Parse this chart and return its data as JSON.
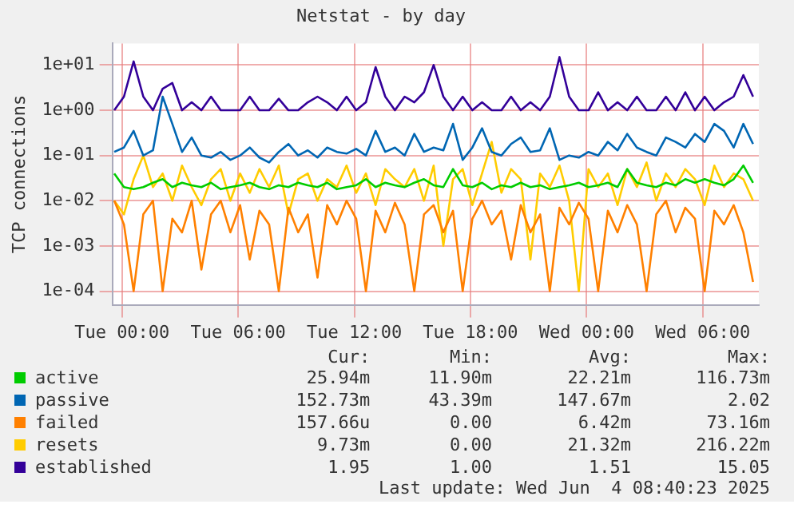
{
  "chart_data": {
    "type": "line",
    "title": "Netstat - by day",
    "ylabel": "TCP connections",
    "log": "y",
    "grid": true,
    "legend": "bottom",
    "marker": "none",
    "xlim": [
      "2025-06-02T23:30",
      "2025-06-04T08:54"
    ],
    "xticks": [
      {
        "value": "2025-06-03T00:00",
        "label": "Tue 00:00"
      },
      {
        "value": "2025-06-03T06:00",
        "label": "Tue 06:00"
      },
      {
        "value": "2025-06-03T12:00",
        "label": "Tue 12:00"
      },
      {
        "value": "2025-06-03T18:00",
        "label": "Tue 18:00"
      },
      {
        "value": "2025-06-04T00:00",
        "label": "Wed 00:00"
      },
      {
        "value": "2025-06-04T06:00",
        "label": "Wed 06:00"
      }
    ],
    "ylim": [
      5e-05,
      30
    ],
    "yticks": [
      {
        "value": 0.0001,
        "label": "1e-04"
      },
      {
        "value": 0.001,
        "label": "1e-03"
      },
      {
        "value": 0.01,
        "label": "1e-02"
      },
      {
        "value": 0.1,
        "label": "1e-01"
      },
      {
        "value": 1,
        "label": "1e+00"
      },
      {
        "value": 10,
        "label": "1e+01"
      }
    ],
    "x": [
      "2025-06-02T23:36",
      "2025-06-03T00:06",
      "2025-06-03T00:36",
      "2025-06-03T01:06",
      "2025-06-03T01:36",
      "2025-06-03T02:06",
      "2025-06-03T02:36",
      "2025-06-03T03:06",
      "2025-06-03T03:36",
      "2025-06-03T04:06",
      "2025-06-03T04:36",
      "2025-06-03T05:06",
      "2025-06-03T05:36",
      "2025-06-03T06:06",
      "2025-06-03T06:36",
      "2025-06-03T07:06",
      "2025-06-03T07:36",
      "2025-06-03T08:06",
      "2025-06-03T08:36",
      "2025-06-03T09:06",
      "2025-06-03T09:36",
      "2025-06-03T10:06",
      "2025-06-03T10:36",
      "2025-06-03T11:06",
      "2025-06-03T11:36",
      "2025-06-03T12:06",
      "2025-06-03T12:36",
      "2025-06-03T13:06",
      "2025-06-03T13:36",
      "2025-06-03T14:06",
      "2025-06-03T14:36",
      "2025-06-03T15:06",
      "2025-06-03T15:36",
      "2025-06-03T16:06",
      "2025-06-03T16:36",
      "2025-06-03T17:06",
      "2025-06-03T17:36",
      "2025-06-03T18:06",
      "2025-06-03T18:36",
      "2025-06-03T19:06",
      "2025-06-03T19:36",
      "2025-06-03T20:06",
      "2025-06-03T20:36",
      "2025-06-03T21:06",
      "2025-06-03T21:36",
      "2025-06-03T22:06",
      "2025-06-03T22:36",
      "2025-06-03T23:06",
      "2025-06-03T23:36",
      "2025-06-04T00:06",
      "2025-06-04T00:36",
      "2025-06-04T01:06",
      "2025-06-04T01:36",
      "2025-06-04T02:06",
      "2025-06-04T02:36",
      "2025-06-04T03:06",
      "2025-06-04T03:36",
      "2025-06-04T04:06",
      "2025-06-04T04:36",
      "2025-06-04T05:06",
      "2025-06-04T05:36",
      "2025-06-04T06:06",
      "2025-06-04T06:36",
      "2025-06-04T07:06",
      "2025-06-04T07:36",
      "2025-06-04T08:06",
      "2025-06-04T08:36"
    ],
    "series": [
      {
        "name": "active",
        "color": "#00cc00",
        "values": [
          0.04,
          0.02,
          0.018,
          0.02,
          0.025,
          0.03,
          0.02,
          0.025,
          0.022,
          0.02,
          0.025,
          0.018,
          0.02,
          0.022,
          0.025,
          0.02,
          0.018,
          0.022,
          0.02,
          0.025,
          0.022,
          0.02,
          0.025,
          0.018,
          0.02,
          0.022,
          0.03,
          0.02,
          0.025,
          0.022,
          0.02,
          0.025,
          0.03,
          0.022,
          0.02,
          0.05,
          0.022,
          0.02,
          0.025,
          0.018,
          0.022,
          0.02,
          0.025,
          0.02,
          0.022,
          0.018,
          0.02,
          0.022,
          0.025,
          0.02,
          0.022,
          0.025,
          0.02,
          0.05,
          0.025,
          0.022,
          0.02,
          0.025,
          0.022,
          0.03,
          0.025,
          0.03,
          0.025,
          0.022,
          0.03,
          0.06,
          0.025
        ]
      },
      {
        "name": "passive",
        "color": "#0066b3",
        "values": [
          0.12,
          0.15,
          0.35,
          0.1,
          0.13,
          2.0,
          0.5,
          0.12,
          0.25,
          0.1,
          0.09,
          0.12,
          0.08,
          0.1,
          0.15,
          0.09,
          0.07,
          0.12,
          0.18,
          0.1,
          0.13,
          0.09,
          0.15,
          0.12,
          0.11,
          0.14,
          0.1,
          0.35,
          0.12,
          0.15,
          0.1,
          0.3,
          0.12,
          0.15,
          0.13,
          0.5,
          0.08,
          0.15,
          0.4,
          0.12,
          0.1,
          0.18,
          0.25,
          0.12,
          0.13,
          0.4,
          0.08,
          0.1,
          0.09,
          0.12,
          0.1,
          0.2,
          0.13,
          0.3,
          0.15,
          0.12,
          0.1,
          0.25,
          0.2,
          0.15,
          0.3,
          0.2,
          0.5,
          0.35,
          0.15,
          0.5,
          0.18
        ]
      },
      {
        "name": "failed",
        "color": "#ff8000",
        "values": [
          0.01,
          0.003,
          0.0001,
          0.005,
          0.01,
          0.0001,
          0.004,
          0.002,
          0.01,
          0.0003,
          0.005,
          0.01,
          0.002,
          0.008,
          0.0005,
          0.006,
          0.003,
          0.0001,
          0.007,
          0.002,
          0.005,
          0.0002,
          0.008,
          0.003,
          0.01,
          0.004,
          0.0001,
          0.006,
          0.002,
          0.009,
          0.003,
          0.0001,
          0.005,
          0.008,
          0.002,
          0.006,
          0.0001,
          0.004,
          0.01,
          0.003,
          0.006,
          0.0005,
          0.008,
          0.002,
          0.005,
          0.0001,
          0.007,
          0.003,
          0.009,
          0.004,
          0.0001,
          0.006,
          0.002,
          0.008,
          0.003,
          0.0001,
          0.005,
          0.01,
          0.002,
          0.007,
          0.004,
          0.0001,
          0.006,
          0.003,
          0.008,
          0.002,
          0.00016
        ]
      },
      {
        "name": "resets",
        "color": "#ffcc00",
        "values": [
          0.01,
          0.005,
          0.03,
          0.1,
          0.02,
          0.04,
          0.01,
          0.06,
          0.02,
          0.008,
          0.03,
          0.05,
          0.01,
          0.04,
          0.015,
          0.05,
          0.02,
          0.06,
          0.005,
          0.03,
          0.04,
          0.01,
          0.03,
          0.02,
          0.06,
          0.015,
          0.04,
          0.008,
          0.05,
          0.03,
          0.02,
          0.05,
          0.01,
          0.06,
          0.001,
          0.03,
          0.05,
          0.008,
          0.04,
          0.2,
          0.015,
          0.05,
          0.03,
          0.0005,
          0.04,
          0.02,
          0.06,
          0.01,
          0.0001,
          0.05,
          0.02,
          0.04,
          0.008,
          0.05,
          0.02,
          0.07,
          0.01,
          0.04,
          0.02,
          0.05,
          0.03,
          0.008,
          0.06,
          0.02,
          0.04,
          0.03,
          0.01
        ]
      },
      {
        "name": "established",
        "color": "#330099",
        "values": [
          1,
          2,
          12,
          2,
          1,
          3,
          4,
          1,
          1.5,
          1,
          2,
          1,
          1,
          1,
          2,
          1,
          1,
          1.8,
          1,
          1,
          1.5,
          2,
          1.5,
          1,
          2,
          1,
          1.5,
          9,
          2,
          1,
          2,
          1.5,
          2.5,
          10,
          2,
          1,
          2,
          1,
          1.5,
          1,
          1,
          2,
          1,
          1.5,
          1,
          2,
          15,
          2,
          1,
          1,
          2.5,
          1,
          1.5,
          1,
          2,
          1,
          1,
          2,
          1,
          2.5,
          1,
          2,
          1,
          1.5,
          2,
          6,
          2
        ]
      }
    ],
    "annotations": [
      "Cur:",
      "Min:",
      "Avg:",
      "Max:",
      "25.94m",
      "11.90m",
      "22.21m",
      "116.73m",
      "152.73m",
      "43.39m",
      "147.67m",
      "2.02",
      "157.66u",
      "0.00",
      "6.42m",
      "73.16m",
      "9.73m",
      "0.00",
      "21.32m",
      "216.22m",
      "1.95",
      "1.00",
      "1.51",
      "15.05",
      "Last update: Wed Jun  4 08:40:23 2025"
    ]
  }
}
